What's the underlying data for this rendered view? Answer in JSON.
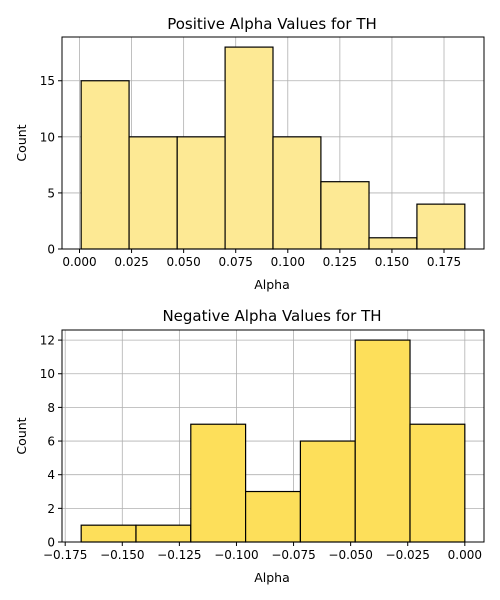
{
  "chart_data": [
    {
      "type": "bar",
      "title": "Positive Alpha Values for TH",
      "xlabel": "Alpha",
      "ylabel": "Count",
      "color": "#fde994",
      "bins": [
        {
          "x0": 0.0008,
          "x1": 0.0238,
          "count": 15
        },
        {
          "x0": 0.0238,
          "x1": 0.0469,
          "count": 10
        },
        {
          "x0": 0.0469,
          "x1": 0.0699,
          "count": 10
        },
        {
          "x0": 0.0699,
          "x1": 0.0929,
          "count": 18
        },
        {
          "x0": 0.0929,
          "x1": 0.1159,
          "count": 10
        },
        {
          "x0": 0.1159,
          "x1": 0.139,
          "count": 6
        },
        {
          "x0": 0.139,
          "x1": 0.162,
          "count": 1
        },
        {
          "x0": 0.162,
          "x1": 0.185,
          "count": 4
        }
      ],
      "xlim": [
        -0.0084,
        0.1942
      ],
      "ylim": [
        0,
        18.9
      ],
      "xticks": [
        0.0,
        0.025,
        0.05,
        0.075,
        0.1,
        0.125,
        0.15,
        0.175
      ],
      "xtick_labels": [
        "0.000",
        "0.025",
        "0.050",
        "0.075",
        "0.100",
        "0.125",
        "0.150",
        "0.175"
      ],
      "yticks": [
        0,
        5,
        10,
        15
      ],
      "ytick_labels": [
        "0",
        "5",
        "10",
        "15"
      ],
      "grid": true
    },
    {
      "type": "bar",
      "title": "Negative Alpha Values for TH",
      "xlabel": "Alpha",
      "ylabel": "Count",
      "color": "#fddf5a",
      "bins": [
        {
          "x0": -0.168,
          "x1": -0.144,
          "count": 1
        },
        {
          "x0": -0.144,
          "x1": -0.12,
          "count": 1
        },
        {
          "x0": -0.12,
          "x1": -0.096,
          "count": 7
        },
        {
          "x0": -0.096,
          "x1": -0.072,
          "count": 3
        },
        {
          "x0": -0.072,
          "x1": -0.048,
          "count": 6
        },
        {
          "x0": -0.048,
          "x1": -0.024,
          "count": 12
        },
        {
          "x0": -0.024,
          "x1": 0.0,
          "count": 7
        }
      ],
      "xlim": [
        -0.1764,
        0.0084
      ],
      "ylim": [
        0,
        12.6
      ],
      "xticks": [
        -0.175,
        -0.15,
        -0.125,
        -0.1,
        -0.075,
        -0.05,
        -0.025,
        0.0
      ],
      "xtick_labels": [
        "−0.175",
        "−0.150",
        "−0.125",
        "−0.100",
        "−0.075",
        "−0.050",
        "−0.025",
        "0.000"
      ],
      "yticks": [
        0,
        2,
        4,
        6,
        8,
        10,
        12
      ],
      "ytick_labels": [
        "0",
        "2",
        "4",
        "6",
        "8",
        "10",
        "12"
      ],
      "grid": true
    }
  ]
}
